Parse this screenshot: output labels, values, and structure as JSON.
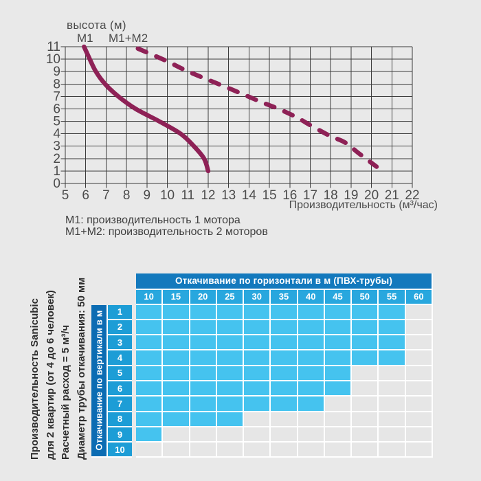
{
  "page": {
    "background": "#e9e9e9"
  },
  "chart": {
    "title": "высота (м)",
    "x_axis_title": "Производительность (м³/час)",
    "curve_label_m1": "M1",
    "curve_label_m1m2": "M1+M2",
    "legend_line1": "M1: производительность 1 мотора",
    "legend_line2": "M1+M2: производительность 2 моторов"
  },
  "chart_data": {
    "type": "line",
    "title": "высота (м)",
    "xlabel": "Производительность (м³/час)",
    "ylabel": "высота (м)",
    "xlim": [
      5,
      22
    ],
    "ylim": [
      0,
      11
    ],
    "x_ticks": [
      5,
      6,
      7,
      8,
      9,
      10,
      11,
      12,
      13,
      14,
      15,
      16,
      17,
      18,
      19,
      20,
      21,
      22
    ],
    "y_ticks": [
      0,
      1,
      2,
      3,
      4,
      5,
      6,
      7,
      8,
      9,
      10,
      11
    ],
    "grid": true,
    "legend_position": "below-left",
    "series": [
      {
        "name": "M1",
        "line_style": "solid",
        "color": "#8e2156",
        "points": [
          [
            5.92,
            11
          ],
          [
            6.2,
            10
          ],
          [
            6.5,
            9
          ],
          [
            6.95,
            8
          ],
          [
            7.6,
            7
          ],
          [
            8.45,
            6
          ],
          [
            9.6,
            5
          ],
          [
            10.65,
            4
          ],
          [
            11.3,
            3
          ],
          [
            11.8,
            2
          ],
          [
            12.0,
            1
          ]
        ]
      },
      {
        "name": "M1+M2",
        "line_style": "dashed",
        "color": "#8e2156",
        "points": [
          [
            8.56,
            10.85
          ],
          [
            9.9,
            9.9
          ],
          [
            11.1,
            8.95
          ],
          [
            13.1,
            7.6
          ],
          [
            14.6,
            6.55
          ],
          [
            15.45,
            6.0
          ],
          [
            16.3,
            5.35
          ],
          [
            17.1,
            4.6
          ],
          [
            18.0,
            3.8
          ],
          [
            18.7,
            3.3
          ],
          [
            19.4,
            2.4
          ],
          [
            20.25,
            1.35
          ]
        ]
      }
    ]
  },
  "table": {
    "col_group_title": "Откачивание по горизонтали в м (ПВХ-трубы)",
    "col_headers": [
      "10",
      "15",
      "20",
      "25",
      "30",
      "35",
      "40",
      "45",
      "50",
      "55",
      "60"
    ],
    "row_group_title": "Откачивание по вертикали в м",
    "row_headers": [
      "1",
      "2",
      "3",
      "4",
      "5",
      "6",
      "7",
      "8",
      "9",
      "10"
    ],
    "filled_counts": [
      10,
      10,
      10,
      10,
      8,
      8,
      7,
      4,
      1,
      0
    ],
    "colors": {
      "group_header": "#1379bd",
      "col_header": "#28a7de",
      "row_strip": "#0c6cb3",
      "row_header": "#1d9dd6",
      "cell_filled": "#45c3ef",
      "cell_empty": "#e6e6e6",
      "grid_line": "#ffffff"
    }
  },
  "side_note": {
    "lines": [
      "Производительность Sanicubic",
      "для 2 квартир (от 4 до 6 человек)",
      "Расчетный расход = 5 м³/ч",
      "Диаметр трубы откачивания: 50 мм"
    ]
  }
}
